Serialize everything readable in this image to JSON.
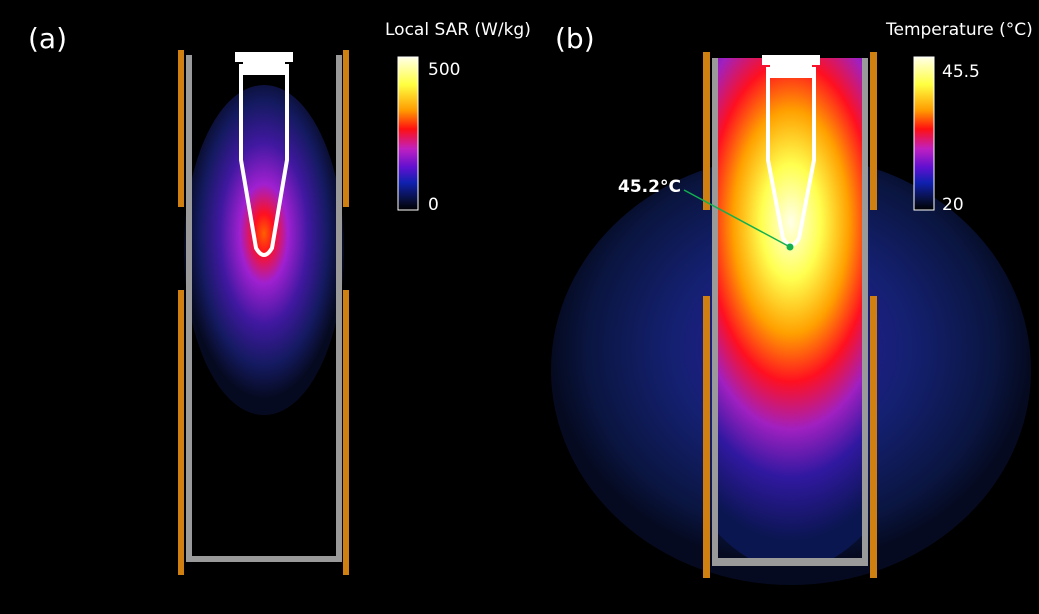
{
  "panels": [
    {
      "label": "(a)",
      "colorbar": {
        "title": "Local SAR (W/kg)",
        "max": "500",
        "min": "0"
      }
    },
    {
      "label": "(b)",
      "colorbar": {
        "title": "Temperature (°C)",
        "max": "45.5",
        "min": "20"
      },
      "annotation": "45.2°C"
    }
  ]
}
